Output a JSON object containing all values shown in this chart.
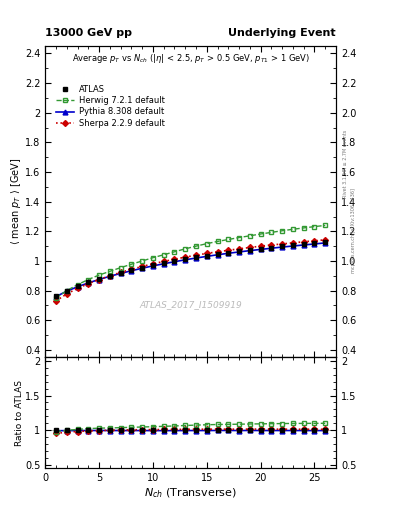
{
  "title_left": "13000 GeV pp",
  "title_right": "Underlying Event",
  "inner_title": "Average $p_T$ vs $N_{ch}$ ($|\\eta|$ < 2.5, $p_T$ > 0.5 GeV, $p_{T1}$ > 1 GeV)",
  "ylabel_main": "$\\langle$ mean $p_T$ $\\rangle$ [GeV]",
  "ylabel_ratio": "Ratio to ATLAS",
  "xlabel": "$N_{ch}$ (Transverse)",
  "watermark": "ATLAS_2017_I1509919",
  "right_label": "mcplots.cern.ch [arXiv:1306.3436]",
  "right_label2": "Rivet 3.1.10, ≥ 2.7M events",
  "xlim": [
    0,
    27
  ],
  "ylim_main": [
    0.35,
    2.45
  ],
  "ylim_ratio": [
    0.45,
    2.05
  ],
  "yticks_main": [
    0.4,
    0.6,
    0.8,
    1.0,
    1.2,
    1.4,
    1.6,
    1.8,
    2.0,
    2.2,
    2.4
  ],
  "yticks_ratio": [
    0.5,
    1.0,
    1.5,
    2.0
  ],
  "xticks": [
    0,
    5,
    10,
    15,
    20,
    25
  ],
  "atlas_x": [
    1,
    2,
    3,
    4,
    5,
    6,
    7,
    8,
    9,
    10,
    11,
    12,
    13,
    14,
    15,
    16,
    17,
    18,
    19,
    20,
    21,
    22,
    23,
    24,
    25,
    26
  ],
  "atlas_y": [
    0.765,
    0.8,
    0.83,
    0.855,
    0.878,
    0.9,
    0.92,
    0.938,
    0.955,
    0.972,
    0.986,
    1.0,
    1.012,
    1.024,
    1.035,
    1.045,
    1.055,
    1.065,
    1.073,
    1.082,
    1.09,
    1.098,
    1.105,
    1.113,
    1.12,
    1.127
  ],
  "herwig_x": [
    1,
    2,
    3,
    4,
    5,
    6,
    7,
    8,
    9,
    10,
    11,
    12,
    13,
    14,
    15,
    16,
    17,
    18,
    19,
    20,
    21,
    22,
    23,
    24,
    25,
    26
  ],
  "herwig_y": [
    0.75,
    0.8,
    0.84,
    0.875,
    0.905,
    0.93,
    0.955,
    0.978,
    1.0,
    1.022,
    1.042,
    1.062,
    1.082,
    1.1,
    1.117,
    1.132,
    1.145,
    1.158,
    1.17,
    1.182,
    1.193,
    1.204,
    1.214,
    1.223,
    1.232,
    1.24
  ],
  "pythia_x": [
    1,
    2,
    3,
    4,
    5,
    6,
    7,
    8,
    9,
    10,
    11,
    12,
    13,
    14,
    15,
    16,
    17,
    18,
    19,
    20,
    21,
    22,
    23,
    24,
    25,
    26
  ],
  "pythia_y": [
    0.76,
    0.796,
    0.826,
    0.852,
    0.875,
    0.897,
    0.916,
    0.934,
    0.951,
    0.967,
    0.981,
    0.995,
    1.008,
    1.02,
    1.031,
    1.042,
    1.052,
    1.061,
    1.07,
    1.078,
    1.086,
    1.094,
    1.101,
    1.108,
    1.115,
    1.122
  ],
  "sherpa_x": [
    1,
    2,
    3,
    4,
    5,
    6,
    7,
    8,
    9,
    10,
    11,
    12,
    13,
    14,
    15,
    16,
    17,
    18,
    19,
    20,
    21,
    22,
    23,
    24,
    25,
    26
  ],
  "sherpa_y": [
    0.73,
    0.778,
    0.815,
    0.847,
    0.875,
    0.9,
    0.923,
    0.944,
    0.963,
    0.981,
    0.997,
    1.012,
    1.026,
    1.039,
    1.051,
    1.062,
    1.072,
    1.082,
    1.091,
    1.1,
    1.108,
    1.115,
    1.122,
    1.13,
    1.136,
    1.143
  ],
  "atlas_color": "#000000",
  "herwig_color": "#339933",
  "pythia_color": "#0000cc",
  "sherpa_color": "#cc0000",
  "bg_color": "#ffffff"
}
